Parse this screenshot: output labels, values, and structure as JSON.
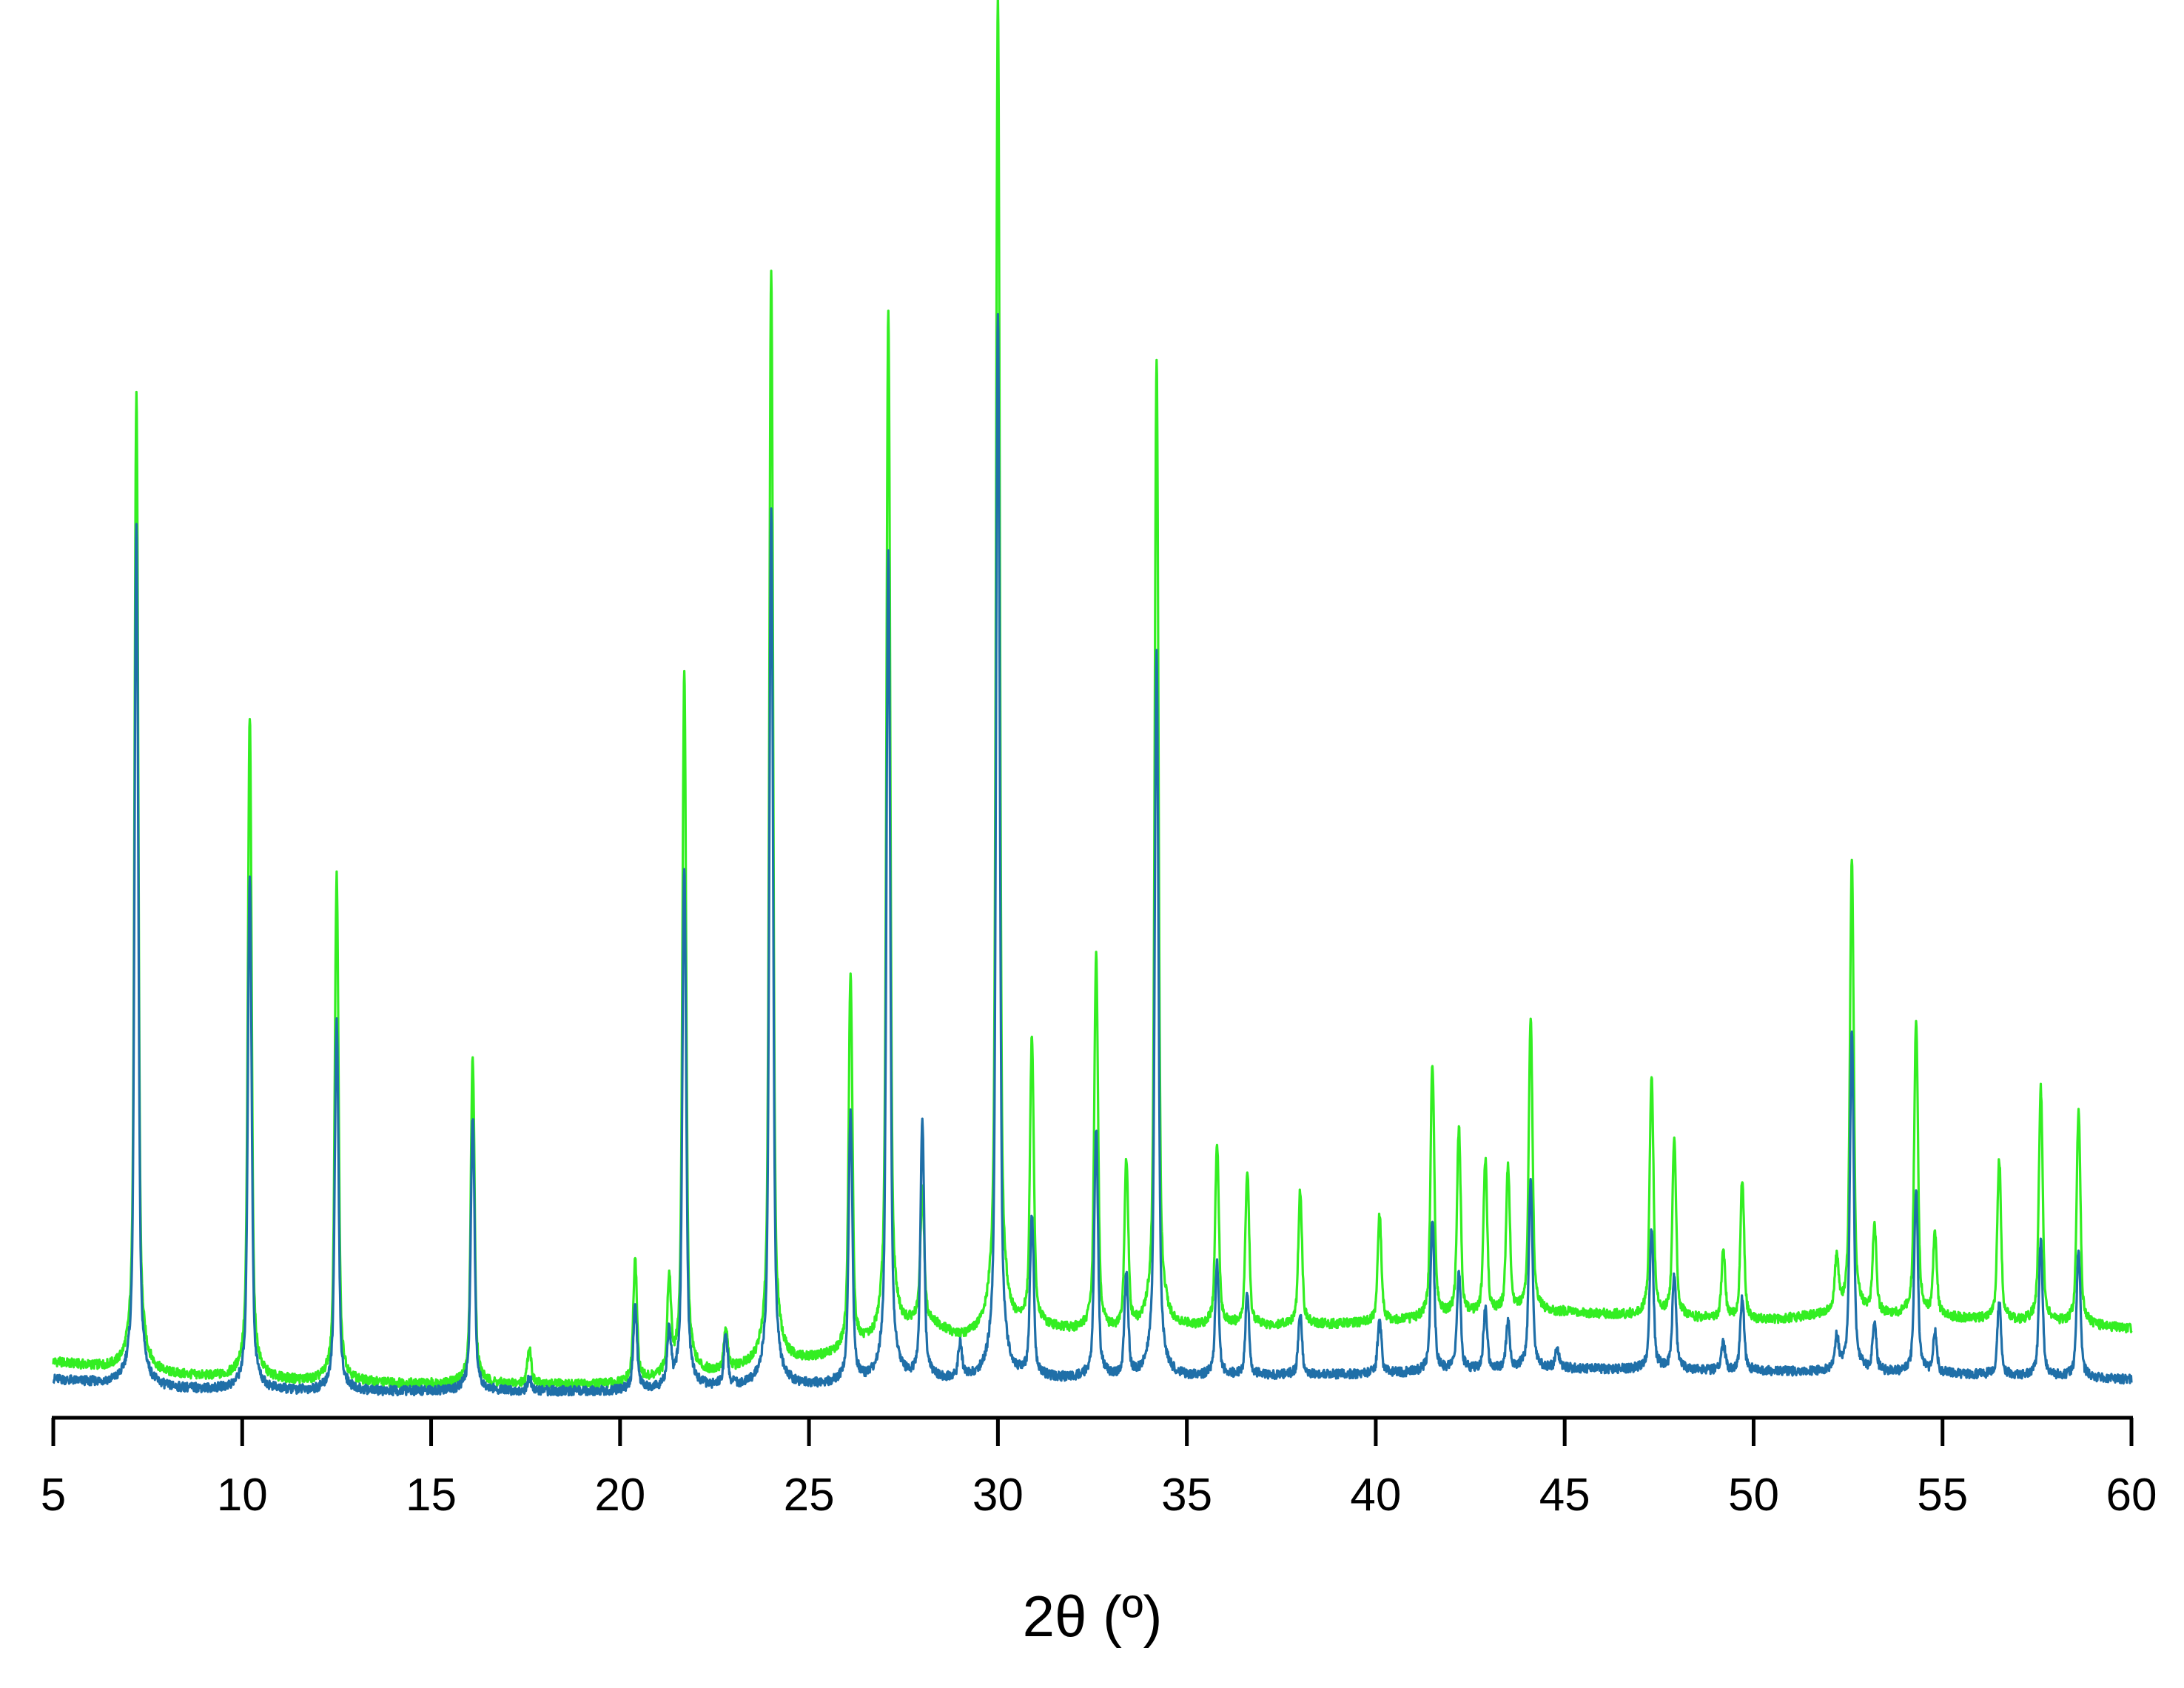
{
  "colors": {
    "series_green": "#33ee22",
    "series_blue": "#1f6fa8",
    "axis": "#000000",
    "background": "#ffffff"
  },
  "chart_data": {
    "type": "line",
    "title": "",
    "xlabel": "2θ (º)",
    "ylabel": "",
    "xlim": [
      5,
      60
    ],
    "ylim": [
      0,
      1000
    ],
    "x_ticks": [
      5,
      10,
      15,
      20,
      25,
      30,
      35,
      40,
      45,
      50,
      55,
      60
    ],
    "x_tick_labels": [
      "5",
      "10",
      "15",
      "20",
      "25",
      "30",
      "35",
      "40",
      "45",
      "50",
      "55",
      "60"
    ],
    "y_axis_visible": false,
    "grid": false,
    "legend": "none",
    "series": [
      {
        "color": "#33ee22",
        "drawn_on_top": false,
        "baseline": [
          [
            5,
            25
          ],
          [
            8,
            15
          ],
          [
            12,
            10
          ],
          [
            16,
            8
          ],
          [
            20,
            8
          ],
          [
            22,
            14
          ],
          [
            24,
            22
          ],
          [
            26,
            30
          ],
          [
            27,
            38
          ],
          [
            28,
            55
          ],
          [
            29,
            42
          ],
          [
            31,
            50
          ],
          [
            33,
            45
          ],
          [
            35,
            50
          ],
          [
            38,
            52
          ],
          [
            40,
            54
          ],
          [
            45,
            62
          ],
          [
            50,
            55
          ],
          [
            52,
            60
          ],
          [
            55,
            58
          ],
          [
            60,
            50
          ]
        ],
        "peaks": [
          [
            7.2,
            730
          ],
          [
            10.2,
            495
          ],
          [
            12.5,
            378
          ],
          [
            16.1,
            244
          ],
          [
            17.6,
            28
          ],
          [
            20.4,
            90
          ],
          [
            21.3,
            70
          ],
          [
            21.7,
            525
          ],
          [
            22.8,
            30
          ],
          [
            24.0,
            820
          ],
          [
            26.1,
            280
          ],
          [
            27.1,
            770
          ],
          [
            28.0,
            95
          ],
          [
            30.0,
            1000
          ],
          [
            30.9,
            215
          ],
          [
            32.6,
            280
          ],
          [
            33.4,
            125
          ],
          [
            34.2,
            725
          ],
          [
            35.8,
            135
          ],
          [
            36.6,
            115
          ],
          [
            38.0,
            100
          ],
          [
            40.1,
            80
          ],
          [
            41.5,
            190
          ],
          [
            42.2,
            140
          ],
          [
            42.9,
            115
          ],
          [
            43.5,
            110
          ],
          [
            44.1,
            220
          ],
          [
            47.3,
            180
          ],
          [
            47.9,
            130
          ],
          [
            49.2,
            50
          ],
          [
            49.7,
            105
          ],
          [
            52.2,
            40
          ],
          [
            52.6,
            340
          ],
          [
            53.2,
            65
          ],
          [
            54.3,
            220
          ],
          [
            54.8,
            60
          ],
          [
            56.5,
            120
          ],
          [
            57.6,
            175
          ],
          [
            58.6,
            160
          ]
        ]
      },
      {
        "color": "#1f6fa8",
        "drawn_on_top": true,
        "baseline": [
          [
            5,
            12
          ],
          [
            8,
            5
          ],
          [
            12,
            3
          ],
          [
            16,
            3
          ],
          [
            20,
            3
          ],
          [
            22,
            5
          ],
          [
            25,
            7
          ],
          [
            28,
            10
          ],
          [
            30,
            12
          ],
          [
            33,
            12
          ],
          [
            36,
            14
          ],
          [
            40,
            16
          ],
          [
            45,
            20
          ],
          [
            50,
            18
          ],
          [
            55,
            16
          ],
          [
            60,
            12
          ]
        ],
        "peaks": [
          [
            7.2,
            645
          ],
          [
            10.2,
            385
          ],
          [
            12.5,
            275
          ],
          [
            16.1,
            205
          ],
          [
            17.6,
            10
          ],
          [
            20.4,
            62
          ],
          [
            21.3,
            40
          ],
          [
            21.7,
            390
          ],
          [
            22.8,
            38
          ],
          [
            24.0,
            655
          ],
          [
            26.1,
            200
          ],
          [
            27.1,
            620
          ],
          [
            28.0,
            190
          ],
          [
            29.0,
            25
          ],
          [
            30.0,
            795
          ],
          [
            30.9,
            120
          ],
          [
            32.6,
            185
          ],
          [
            33.4,
            75
          ],
          [
            34.2,
            540
          ],
          [
            35.8,
            85
          ],
          [
            36.6,
            60
          ],
          [
            38.0,
            45
          ],
          [
            40.1,
            40
          ],
          [
            41.5,
            115
          ],
          [
            42.2,
            75
          ],
          [
            42.9,
            45
          ],
          [
            43.5,
            35
          ],
          [
            44.1,
            140
          ],
          [
            44.8,
            15
          ],
          [
            47.3,
            105
          ],
          [
            47.9,
            70
          ],
          [
            49.2,
            20
          ],
          [
            49.7,
            55
          ],
          [
            52.2,
            25
          ],
          [
            52.6,
            255
          ],
          [
            53.2,
            35
          ],
          [
            54.3,
            135
          ],
          [
            54.8,
            30
          ],
          [
            56.5,
            55
          ],
          [
            57.6,
            100
          ],
          [
            58.6,
            95
          ]
        ]
      }
    ]
  }
}
